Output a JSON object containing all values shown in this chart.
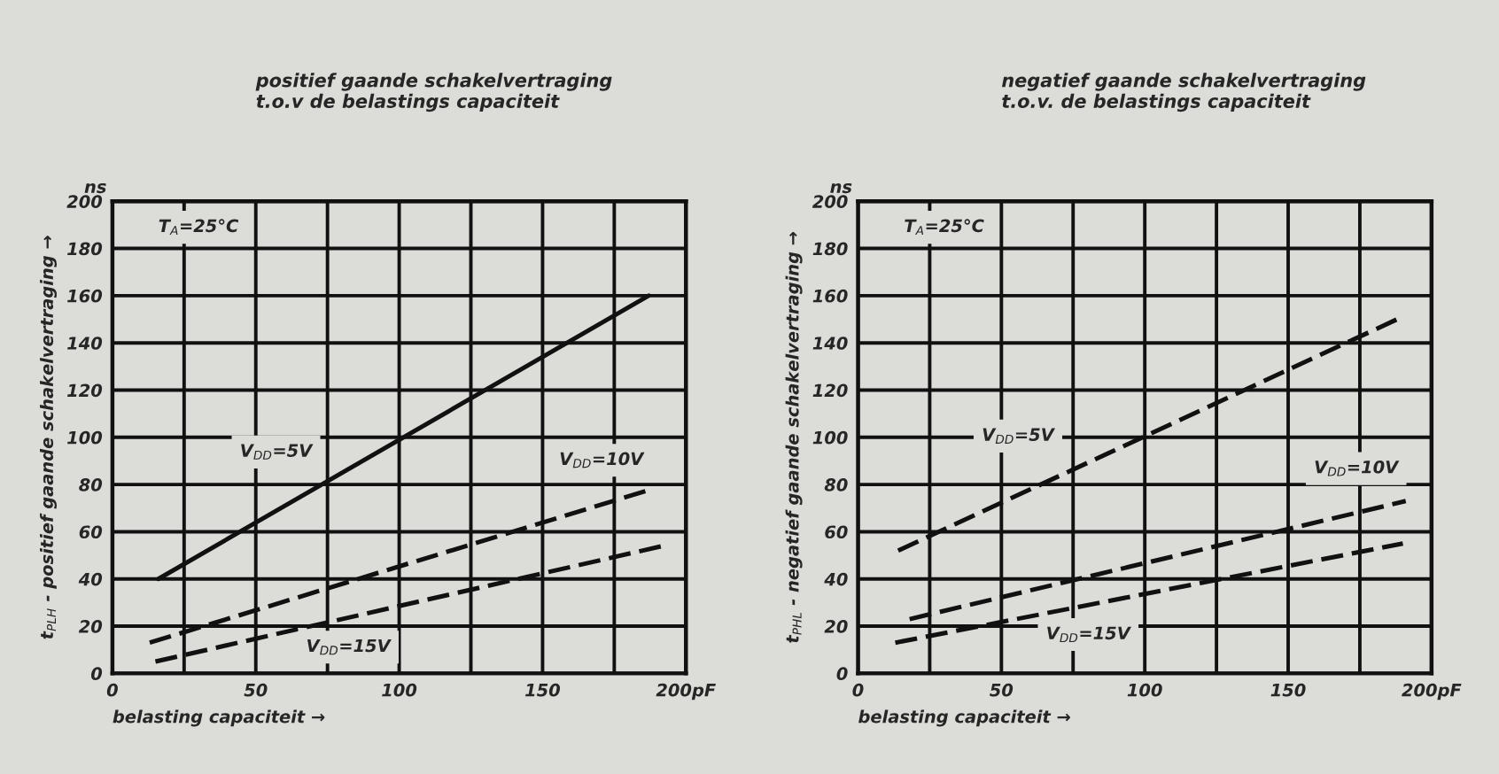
{
  "chart_data": [
    {
      "type": "line",
      "title": "positief gaande schakelvertraging\nt.o.v de belastings capaciteit",
      "xlabel": "belasting capaciteit →",
      "ylabel": "t$_{PLH}$ - positief gaande schakelvertraging →",
      "xlim": [
        0,
        200
      ],
      "xticks": [
        0,
        {
          "value": 25,
          "label": null
        },
        50,
        {
          "value": 75,
          "label": null
        },
        100,
        {
          "value": 125,
          "label": null
        },
        150,
        {
          "value": 175,
          "label": null
        },
        {
          "value": 200,
          "label": "200pF"
        }
      ],
      "ylim": [
        0,
        200
      ],
      "yticks": [
        0,
        20,
        40,
        60,
        80,
        100,
        120,
        140,
        160,
        180,
        200
      ],
      "grid": true,
      "legend": false,
      "series": [
        {
          "name": "V$_{DD}$=5V",
          "color": "#111111",
          "line_style": "solid",
          "x": [
            16,
            187
          ],
          "values": [
            40,
            160
          ]
        },
        {
          "name": "V$_{DD}$=10V",
          "color": "#111111",
          "line_style": "dashed",
          "x": [
            13,
            188
          ],
          "values": [
            13,
            78
          ]
        },
        {
          "name": "V$_{DD}$=15V",
          "color": "#111111",
          "line_style": "dashed",
          "x": [
            15,
            192
          ],
          "values": [
            5,
            54
          ]
        }
      ],
      "annotations": [
        "ns",
        "T$_{A}$=25°C"
      ]
    },
    {
      "type": "line",
      "title": "negatief gaande schakelvertraging\nt.o.v. de belastings capaciteit",
      "xlabel": "belasting capaciteit →",
      "ylabel": "t$_{PHL}$ - negatief gaande schakelvertraging →",
      "xlim": [
        0,
        200
      ],
      "xticks": [
        0,
        {
          "value": 25,
          "label": null
        },
        50,
        {
          "value": 75,
          "label": null
        },
        100,
        {
          "value": 125,
          "label": null
        },
        150,
        {
          "value": 175,
          "label": null
        },
        {
          "value": 200,
          "label": "200pF"
        }
      ],
      "ylim": [
        0,
        200
      ],
      "yticks": [
        0,
        20,
        40,
        60,
        80,
        100,
        120,
        140,
        160,
        180,
        200
      ],
      "grid": true,
      "legend": false,
      "series": [
        {
          "name": "V$_{DD}$=5V",
          "color": "#111111",
          "line_style": "dashed",
          "x": [
            14,
            188
          ],
          "values": [
            52,
            150
          ]
        },
        {
          "name": "V$_{DD}$=10V",
          "color": "#111111",
          "line_style": "dashed",
          "x": [
            18,
            191
          ],
          "values": [
            23,
            73
          ]
        },
        {
          "name": "V$_{DD}$=15V",
          "color": "#111111",
          "line_style": "dashed",
          "x": [
            13,
            190
          ],
          "values": [
            13,
            55
          ]
        }
      ],
      "annotations": [
        "ns",
        "T$_{A}$=25°C"
      ]
    }
  ]
}
